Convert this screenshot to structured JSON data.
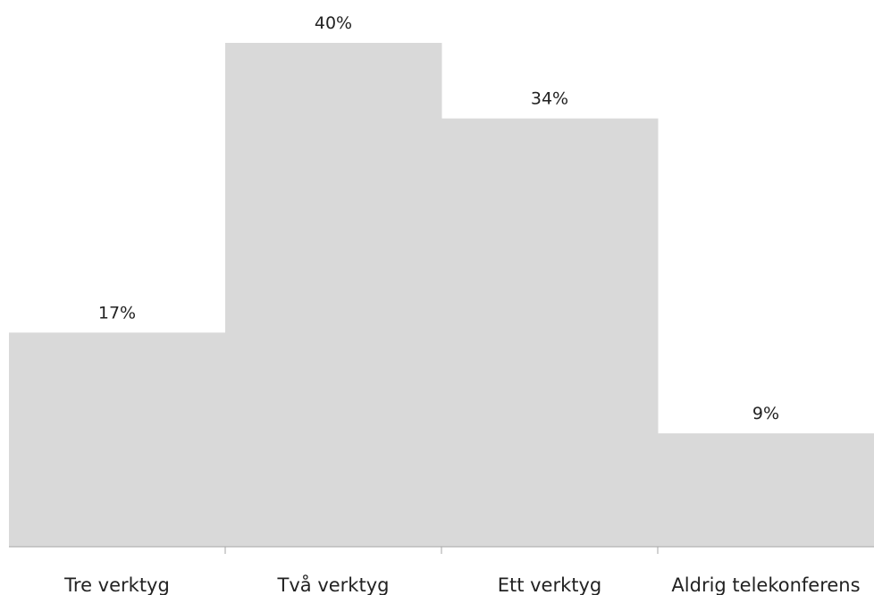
{
  "chart_data": {
    "type": "bar",
    "categories": [
      "Tre verktyg",
      "Två verktyg",
      "Ett verktyg",
      "Aldrig telekonferens"
    ],
    "values": [
      17,
      40,
      34,
      9
    ],
    "data_labels": [
      "17%",
      "40%",
      "34%",
      "9%"
    ],
    "bar_color": "#d9d9d9",
    "ylim": [
      0,
      40
    ],
    "grid": false,
    "legend": "none"
  }
}
